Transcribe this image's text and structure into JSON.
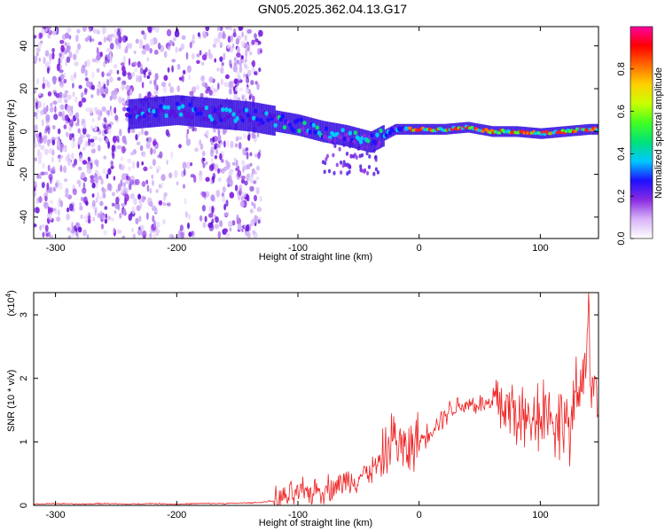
{
  "title": "GN05.2025.362.04.13.G17",
  "chart_data": [
    {
      "type": "heatmap",
      "name": "spectrogram",
      "xlabel": "Height of straight line (km)",
      "ylabel": "Frequency (Hz)",
      "xlim": [
        -318,
        148
      ],
      "ylim": [
        -50,
        49
      ],
      "xticks": [
        -300,
        -200,
        -100,
        0,
        100
      ],
      "yticks": [
        -40,
        -20,
        0,
        20,
        40
      ],
      "colorbar": {
        "label": "Normalized spectral amplitude",
        "range": [
          0,
          1
        ],
        "ticks": [
          0.0,
          0.2,
          0.4,
          0.6,
          0.8
        ],
        "colors": [
          "#ffffff",
          "#d8b4f8",
          "#8a2be2",
          "#1e10ff",
          "#00c8ff",
          "#00e07a",
          "#40ff20",
          "#c8ff00",
          "#ffd000",
          "#ff6a00",
          "#ff0000",
          "#ff00a0"
        ]
      },
      "ridge": {
        "description": "dominant frequency ridge (Hz) vs height (km)",
        "x": [
          -240,
          -220,
          -200,
          -180,
          -160,
          -140,
          -120,
          -100,
          -80,
          -60,
          -40,
          -30,
          -20,
          0,
          20,
          40,
          60,
          80,
          100,
          120,
          140,
          148
        ],
        "y": [
          8,
          9,
          10,
          9,
          8,
          7,
          5,
          3,
          0,
          -2,
          -5,
          -2,
          1,
          1,
          1,
          2,
          0,
          0,
          -1,
          0,
          1,
          1
        ]
      }
    },
    {
      "type": "line",
      "name": "snr",
      "xlabel": "Height of straight line (km)",
      "ylabel": "SNR (10 * v/v)",
      "y_multiplier": "(x10",
      "y_multiplier_exp": "4",
      "xlim": [
        -318,
        148
      ],
      "ylim": [
        0,
        3.35
      ],
      "xticks": [
        -300,
        -200,
        -100,
        0,
        100
      ],
      "yticks": [
        0,
        1,
        2,
        3
      ],
      "series": [
        {
          "name": "SNR",
          "color": "#ee2222",
          "x": [
            -318,
            -300,
            -280,
            -260,
            -240,
            -220,
            -200,
            -180,
            -160,
            -140,
            -130,
            -120,
            -110,
            -100,
            -90,
            -80,
            -70,
            -60,
            -50,
            -40,
            -30,
            -25,
            -20,
            -15,
            -10,
            -5,
            0,
            5,
            10,
            15,
            20,
            25,
            30,
            35,
            40,
            45,
            50,
            55,
            60,
            65,
            70,
            75,
            80,
            85,
            90,
            95,
            100,
            105,
            110,
            115,
            120,
            125,
            130,
            135,
            138,
            140,
            142,
            145,
            148
          ],
          "y": [
            0.02,
            0.03,
            0.02,
            0.03,
            0.02,
            0.03,
            0.02,
            0.03,
            0.03,
            0.04,
            0.05,
            0.07,
            0.12,
            0.18,
            0.22,
            0.25,
            0.3,
            0.38,
            0.45,
            0.55,
            0.7,
            0.95,
            1.1,
            0.9,
            0.85,
            1.0,
            1.0,
            1.1,
            1.2,
            1.3,
            1.4,
            1.5,
            1.55,
            1.58,
            1.6,
            1.6,
            1.58,
            1.6,
            1.55,
            1.7,
            1.5,
            1.55,
            1.45,
            1.35,
            1.3,
            1.55,
            1.4,
            1.6,
            1.35,
            1.2,
            1.5,
            1.1,
            1.7,
            1.95,
            2.6,
            3.35,
            1.8,
            2.0,
            1.4
          ]
        }
      ]
    }
  ]
}
